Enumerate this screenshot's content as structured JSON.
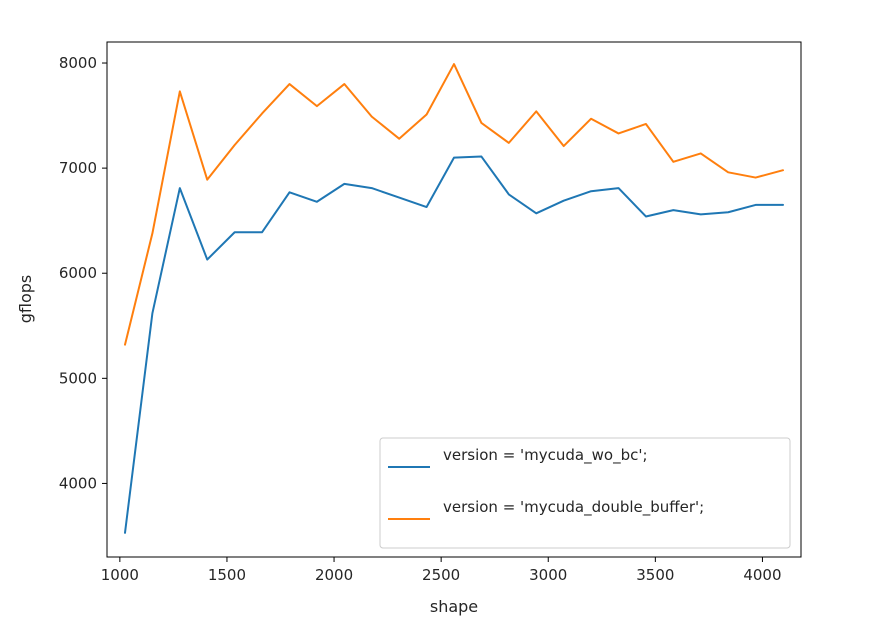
{
  "chart_data": {
    "type": "line",
    "title": "",
    "xlabel": "shape",
    "ylabel": "gflops",
    "xlim": [
      940,
      4180
    ],
    "ylim": [
      3300,
      8200
    ],
    "xticks": [
      1000,
      1500,
      2000,
      2500,
      3000,
      3500,
      4000
    ],
    "yticks": [
      4000,
      5000,
      6000,
      7000,
      8000
    ],
    "grid": false,
    "legend_position": "lower-right",
    "series": [
      {
        "name": "version = 'mycuda_wo_bc';",
        "color": "#1f77b4",
        "x": [
          1024,
          1152,
          1280,
          1408,
          1536,
          1664,
          1792,
          1920,
          2048,
          2176,
          2304,
          2432,
          2560,
          2688,
          2816,
          2944,
          3072,
          3200,
          3328,
          3456,
          3584,
          3712,
          3840,
          3968,
          4096
        ],
        "y": [
          3530,
          5620,
          6810,
          6130,
          6390,
          6390,
          6770,
          6680,
          6850,
          6810,
          6720,
          6630,
          7100,
          7110,
          6750,
          6570,
          6690,
          6780,
          6810,
          6540,
          6600,
          6560,
          6580,
          6650,
          6650
        ]
      },
      {
        "name": "version = 'mycuda_double_buffer';",
        "color": "#ff7f0e",
        "x": [
          1024,
          1152,
          1280,
          1408,
          1536,
          1664,
          1792,
          1920,
          2048,
          2176,
          2304,
          2432,
          2560,
          2688,
          2816,
          2944,
          3072,
          3200,
          3328,
          3456,
          3584,
          3712,
          3840,
          3968,
          4096
        ],
        "y": [
          5320,
          6380,
          7730,
          6890,
          7220,
          7520,
          7800,
          7590,
          7800,
          7490,
          7280,
          7510,
          7990,
          7430,
          7240,
          7540,
          7210,
          7470,
          7330,
          7420,
          7060,
          7140,
          6960,
          6910,
          6980
        ]
      }
    ]
  }
}
